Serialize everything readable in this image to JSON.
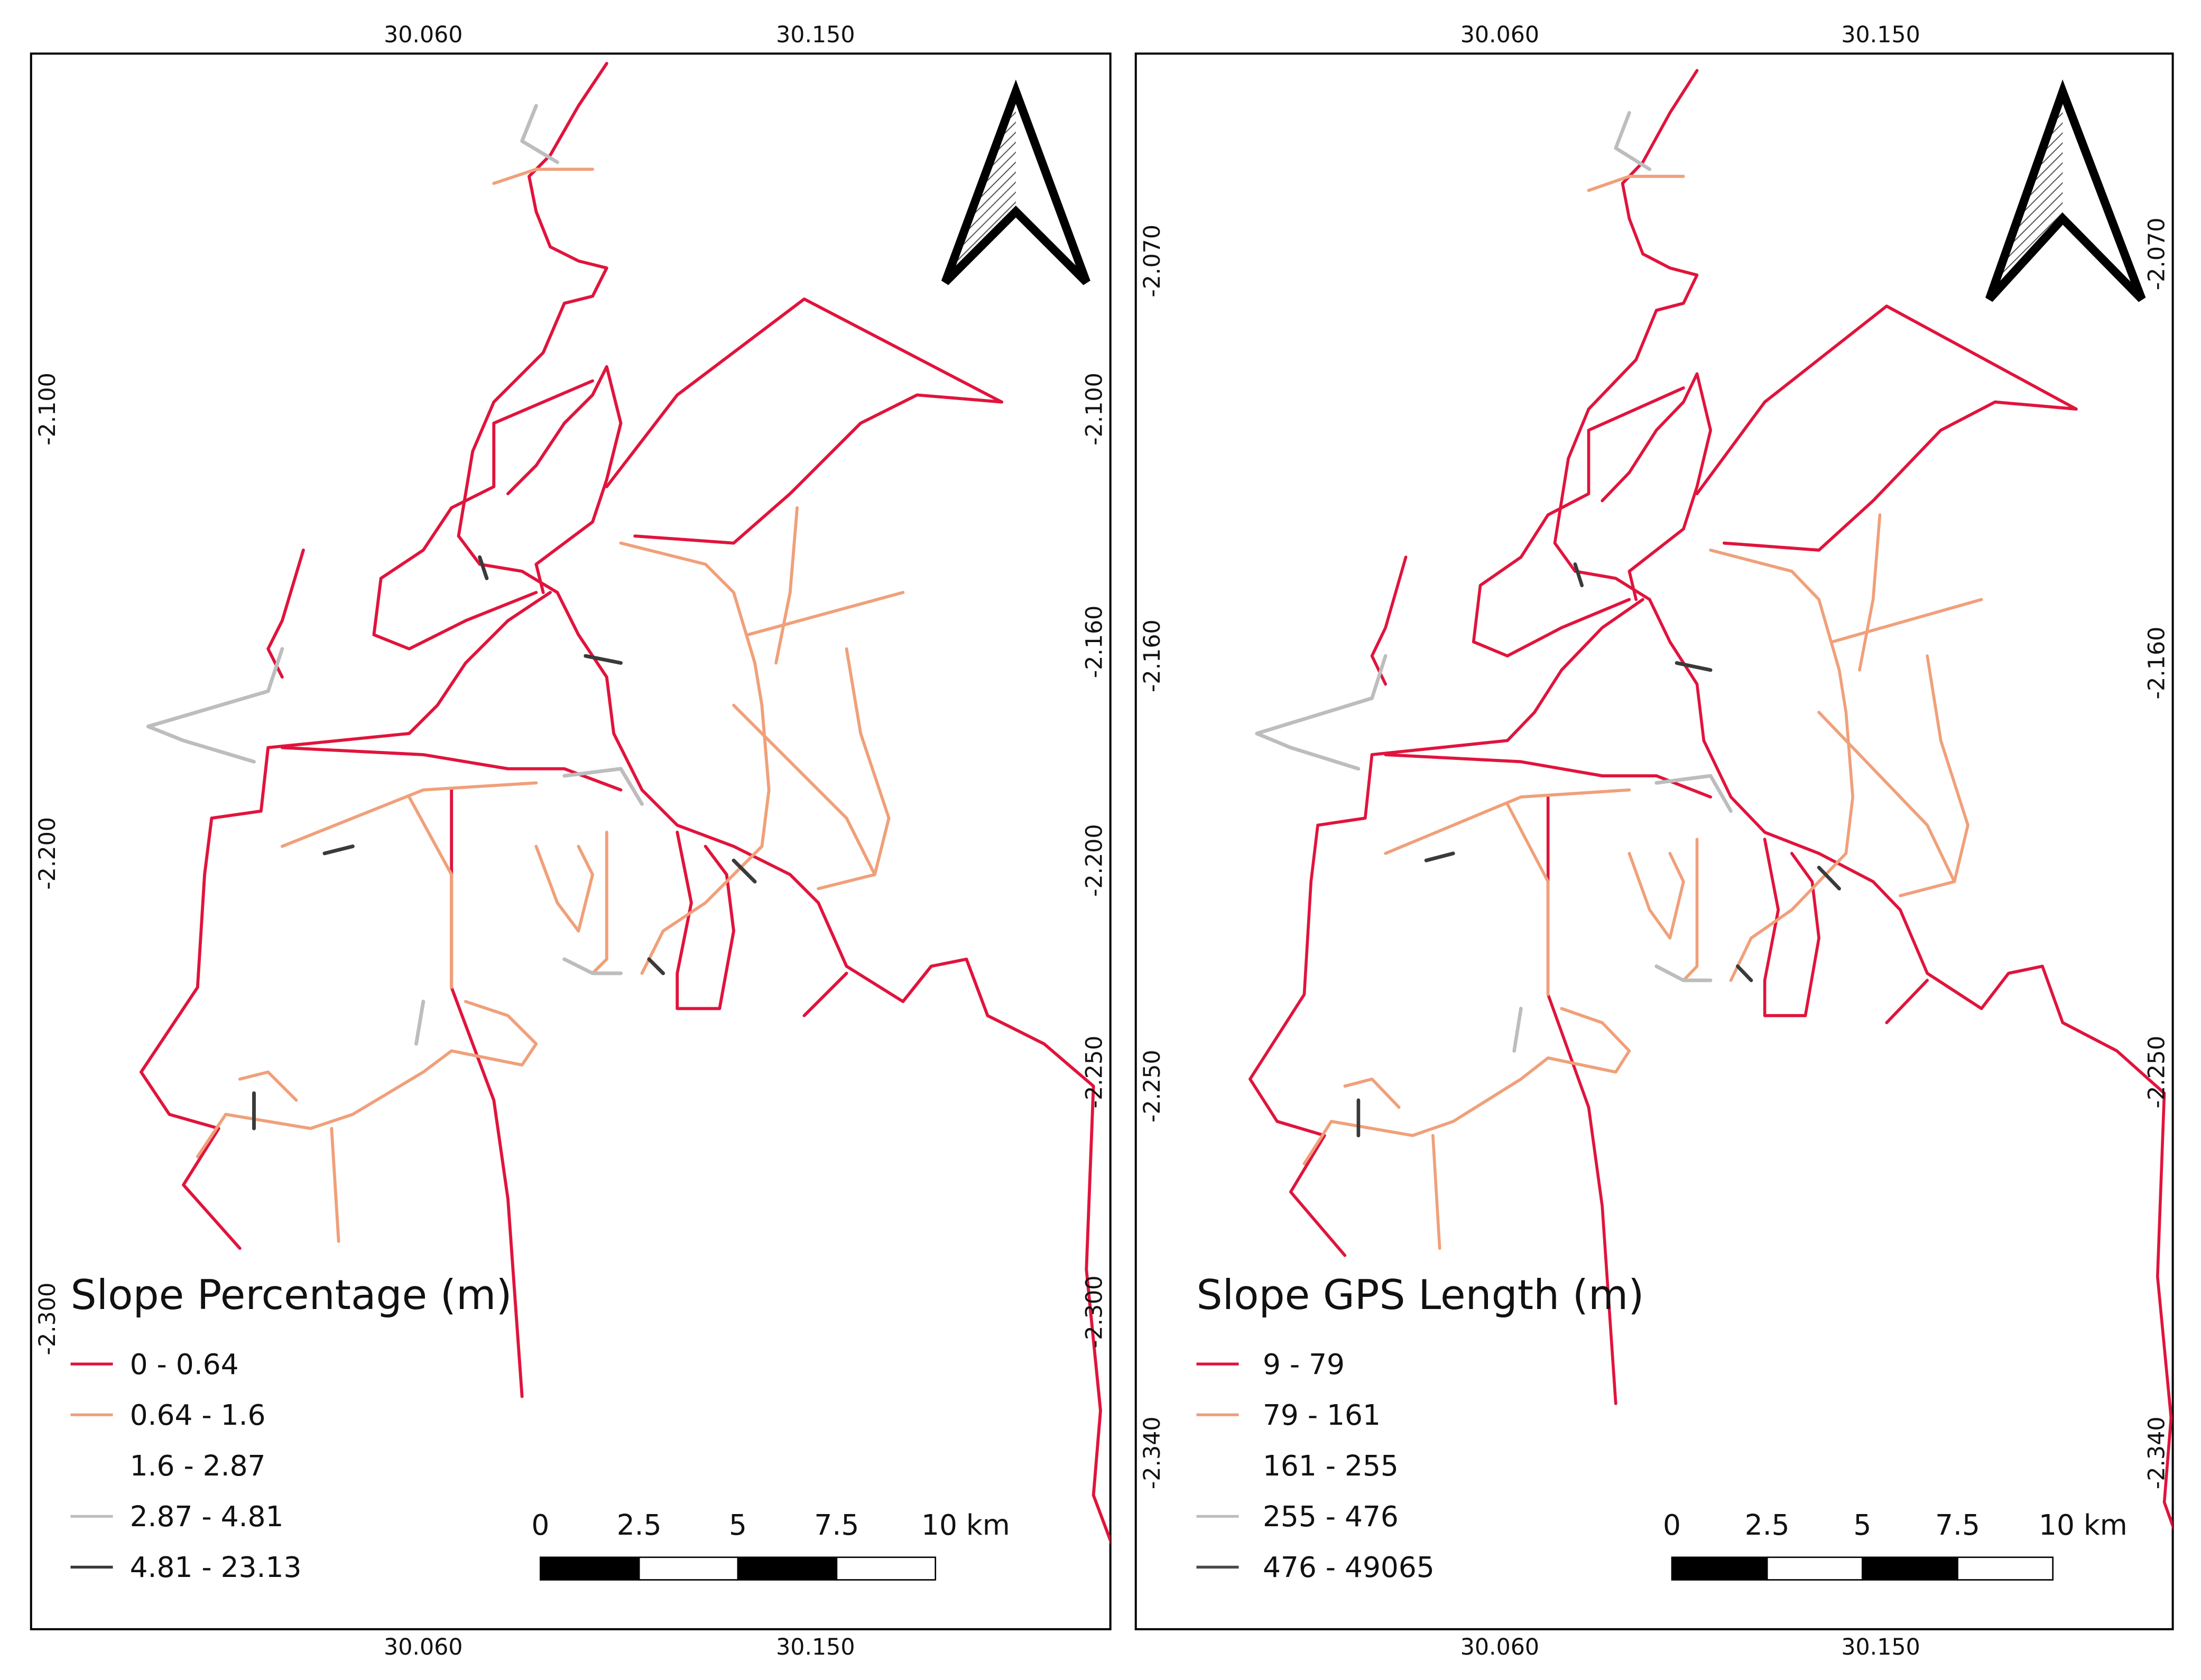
{
  "panels": [
    {
      "legend": {
        "title": "Slope Percentage (m)",
        "items": [
          {
            "label": "0 - 0.64",
            "color": "#e0143c"
          },
          {
            "label": "0.64 - 1.6",
            "color": "#f0a07a"
          },
          {
            "label": "1.6 - 2.87",
            "color": "#ffffff"
          },
          {
            "label": "2.87 - 4.81",
            "color": "#bdbdbd"
          },
          {
            "label": "4.81 - 23.13",
            "color": "#3a3a3a"
          }
        ]
      },
      "scale_bar": [
        "0",
        "2.5",
        "5",
        "7.5",
        "10 km"
      ],
      "top_labels": [
        "30.060",
        "30.150"
      ],
      "bottom_labels": [
        "30.060",
        "30.150"
      ],
      "left_labels": [
        "-2.100",
        "-2.200",
        "-2.300"
      ],
      "right_labels": [
        "-2.100",
        "-2.160",
        "-2.200",
        "-2.250",
        "-2.300"
      ]
    },
    {
      "legend": {
        "title": "Slope GPS Length (m)",
        "items": [
          {
            "label": "9 - 79",
            "color": "#e0143c"
          },
          {
            "label": "79 - 161",
            "color": "#f0a07a"
          },
          {
            "label": "161 - 255",
            "color": "#ffffff"
          },
          {
            "label": "255 - 476",
            "color": "#bdbdbd"
          },
          {
            "label": "476 - 49065",
            "color": "#4a4a4a"
          }
        ]
      },
      "scale_bar": [
        "0",
        "2.5",
        "5",
        "7.5",
        "10 km"
      ],
      "top_labels": [
        "30.060",
        "30.150"
      ],
      "bottom_labels": [
        "30.060",
        "30.150"
      ],
      "left_labels": [
        "-2.070",
        "-2.160",
        "-2.250",
        "-2.340"
      ],
      "right_labels": [
        "-2.070",
        "-2.160",
        "-2.250",
        "-2.340"
      ]
    }
  ]
}
